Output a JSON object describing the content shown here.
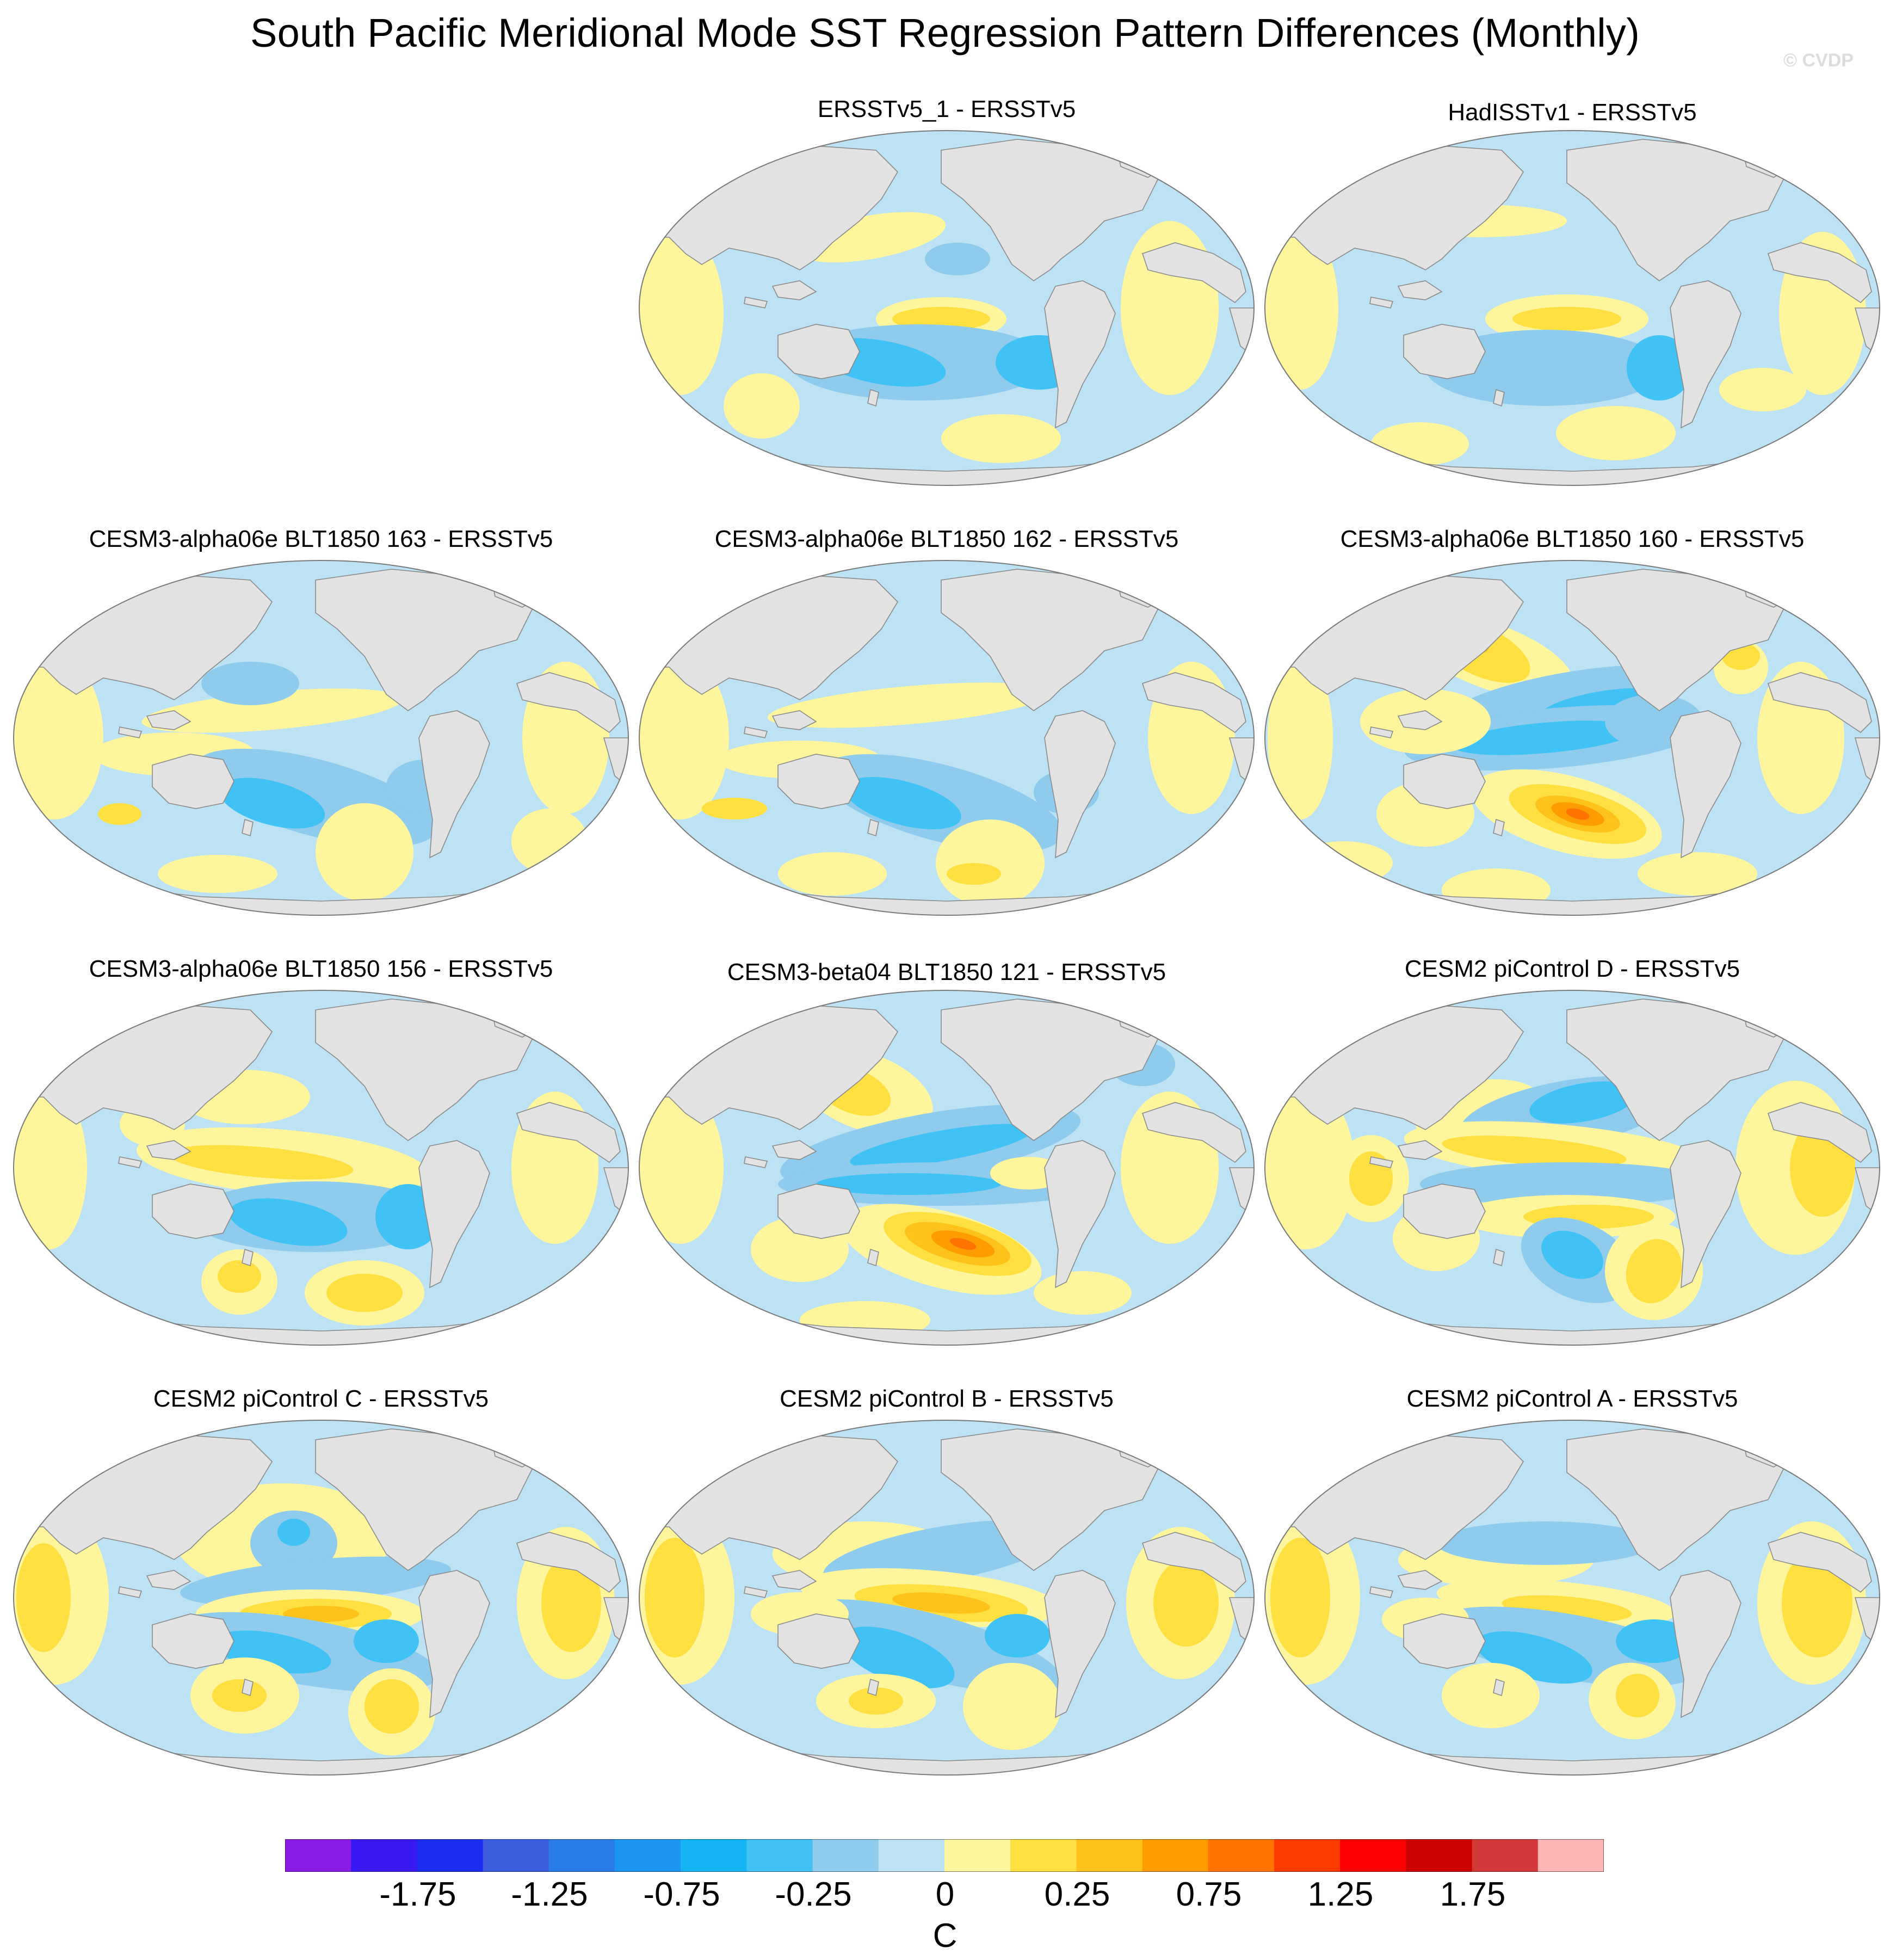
{
  "figure": {
    "title": "South Pacific Meridional Mode SST Regression Pattern Differences (Monthly)",
    "watermark": "© CVDP"
  },
  "panels": [
    {
      "title": "ERSSTv5_1 - ERSSTv5",
      "pattern": "obs1"
    },
    {
      "title": "HadISSTv1 - ERSSTv5",
      "pattern": "obs2"
    },
    {
      "title": "CESM3-alpha06e BLT1850 163 - ERSSTv5",
      "pattern": "blt163"
    },
    {
      "title": "CESM3-alpha06e BLT1850 162 - ERSSTv5",
      "pattern": "blt162"
    },
    {
      "title": "CESM3-alpha06e BLT1850 160 - ERSSTv5",
      "pattern": "blt160"
    },
    {
      "title": "CESM3-alpha06e BLT1850 156 - ERSSTv5",
      "pattern": "blt156"
    },
    {
      "title": "CESM3-beta04 BLT1850 121 - ERSSTv5",
      "pattern": "beta121"
    },
    {
      "title": "CESM2 piControl D - ERSSTv5",
      "pattern": "picD"
    },
    {
      "title": "CESM2 piControl C - ERSSTv5",
      "pattern": "picC"
    },
    {
      "title": "CESM2 piControl B - ERSSTv5",
      "pattern": "picB"
    },
    {
      "title": "CESM2 piControl A - ERSSTv5",
      "pattern": "picA"
    }
  ],
  "colorbar": {
    "unit": "C",
    "tick_labels": [
      "-1.75",
      "-1.25",
      "-0.75",
      "-0.25",
      "0",
      "0.25",
      "0.75",
      "1.25",
      "1.75"
    ],
    "colors": [
      "#8a1ce6",
      "#3a17f5",
      "#1a2df0",
      "#3d5ee0",
      "#2a7de8",
      "#1a96f0",
      "#14b4f5",
      "#40c2f5",
      "#8ecbec",
      "#bde2f4",
      "#fff59c",
      "#ffe040",
      "#ffc21a",
      "#ff9c00",
      "#ff7300",
      "#ff3c00",
      "#ff0000",
      "#cc0000",
      "#d23a3a",
      "#ffb6b6"
    ]
  },
  "map_style": {
    "land": "#e2e2e2",
    "coast": "#8a8a8a",
    "background_anomaly": "#bde2f4"
  }
}
